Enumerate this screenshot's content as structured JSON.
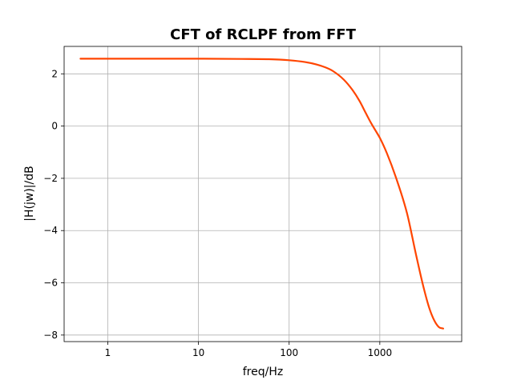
{
  "chart_data": {
    "type": "line",
    "title": "CFT of RCLPF from FFT",
    "xlabel": "freq/Hz",
    "ylabel": "|H(jw)|/dB",
    "xscale": "log",
    "xlim": [
      0.33,
      8000
    ],
    "ylim": [
      -8.25,
      3.05
    ],
    "grid": true,
    "x_ticks": [
      {
        "value": 1,
        "label": "1"
      },
      {
        "value": 10,
        "label": "10"
      },
      {
        "value": 100,
        "label": "100"
      },
      {
        "value": 1000,
        "label": "1000"
      }
    ],
    "y_ticks": [
      {
        "value": 2,
        "label": "2"
      },
      {
        "value": 0,
        "label": "0"
      },
      {
        "value": -2,
        "label": "−2"
      },
      {
        "value": -4,
        "label": "−4"
      },
      {
        "value": -6,
        "label": "−6"
      },
      {
        "value": -8,
        "label": "−8"
      }
    ],
    "series": [
      {
        "color": "#ff4500",
        "x": [
          0.5,
          1,
          3,
          10,
          30,
          60,
          100,
          150,
          200,
          250,
          300,
          400,
          500,
          600,
          700,
          800,
          900,
          1000,
          1200,
          1500,
          2000,
          2500,
          3000,
          3500,
          4000,
          4500,
          5000
        ],
        "y": [
          2.58,
          2.58,
          2.58,
          2.58,
          2.57,
          2.56,
          2.52,
          2.45,
          2.36,
          2.25,
          2.12,
          1.78,
          1.38,
          0.95,
          0.5,
          0.12,
          -0.18,
          -0.45,
          -1.05,
          -1.95,
          -3.35,
          -4.9,
          -6.1,
          -6.95,
          -7.45,
          -7.7,
          -7.75
        ]
      }
    ]
  }
}
